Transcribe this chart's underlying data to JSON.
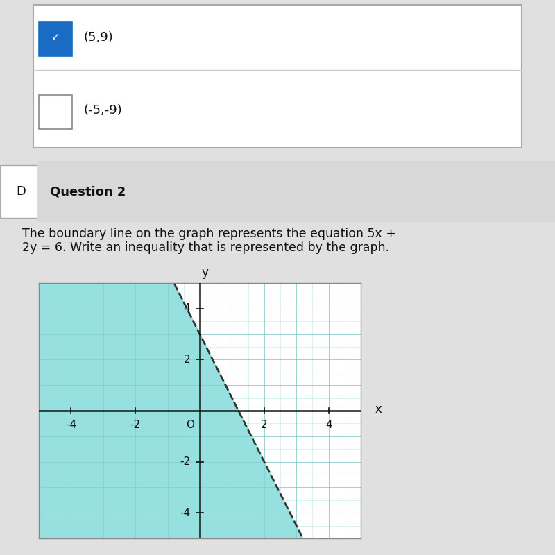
{
  "question_label": "Question 2",
  "checkbox_items": [
    {
      "label": "(5,9)",
      "checked": true
    },
    {
      "label": "(-5,-9)",
      "checked": false
    }
  ],
  "equation": "5x + 2y = 6",
  "xlim": [
    -5,
    5
  ],
  "ylim": [
    -5,
    5
  ],
  "x_ticks": [
    -4,
    -2,
    2,
    4
  ],
  "y_ticks": [
    -4,
    -2,
    2,
    4
  ],
  "shade_color": "#40C8C8",
  "shade_alpha": 0.55,
  "line_color": "#333333",
  "line_style": "--",
  "line_width": 2.0,
  "axis_color": "#111111",
  "grid_color": "#aadddd",
  "grid_alpha": 0.7,
  "background_color": "#e0e0e0",
  "text_color": "#111111",
  "tick_fontsize": 11,
  "label_fontsize": 12
}
